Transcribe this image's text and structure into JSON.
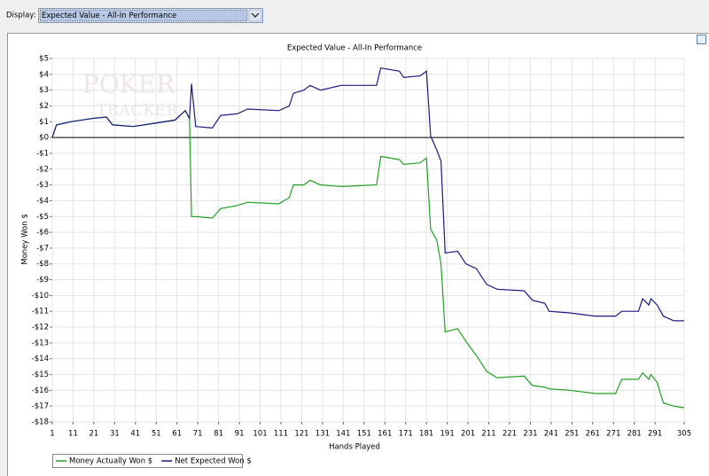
{
  "toolbar": {
    "label": "Display:",
    "selected": "Expected Value - All-In Performance"
  },
  "chart_data": {
    "type": "line",
    "title": "Expected Value - All-In Performance",
    "watermark": [
      "POKER",
      "TRACKER"
    ],
    "x_label": "Hands Played",
    "y_label": "Money Won $",
    "x": [
      1,
      3,
      10,
      20,
      27,
      30,
      40,
      50,
      60,
      65,
      67,
      68,
      70,
      78,
      82,
      90,
      95,
      110,
      115,
      117,
      122,
      125,
      130,
      140,
      157,
      159,
      168,
      170,
      178,
      181,
      183,
      186,
      188,
      190,
      196,
      200,
      205,
      210,
      215,
      228,
      232,
      238,
      240,
      250,
      262,
      272,
      275,
      283,
      285,
      288,
      289,
      292,
      295,
      300,
      305
    ],
    "series": [
      {
        "name": "Money Actually Won $",
        "color": "#22a022",
        "values": [
          0,
          0.8,
          1.0,
          1.2,
          1.3,
          0.8,
          0.7,
          0.9,
          1.1,
          1.7,
          1.2,
          -5.0,
          -5.0,
          -5.1,
          -4.5,
          -4.3,
          -4.1,
          -4.2,
          -3.8,
          -3.0,
          -3.0,
          -2.7,
          -3.0,
          -3.1,
          -3.0,
          -1.2,
          -1.4,
          -1.7,
          -1.6,
          -1.3,
          -5.8,
          -6.5,
          -8.0,
          -12.3,
          -12.1,
          -12.9,
          -13.8,
          -14.8,
          -15.2,
          -15.1,
          -15.7,
          -15.8,
          -15.9,
          -16.0,
          -16.2,
          -16.2,
          -15.3,
          -15.3,
          -14.9,
          -15.3,
          -15.0,
          -15.5,
          -16.8,
          -17.0,
          -17.1
        ]
      },
      {
        "name": "Net Expected Won $",
        "color": "#1a1a80",
        "values": [
          0,
          0.8,
          1.0,
          1.2,
          1.3,
          0.8,
          0.7,
          0.9,
          1.1,
          1.7,
          1.2,
          3.4,
          0.7,
          0.6,
          1.4,
          1.5,
          1.8,
          1.7,
          2.0,
          2.8,
          3.0,
          3.3,
          3.0,
          3.3,
          3.3,
          4.4,
          4.2,
          3.8,
          3.9,
          4.2,
          0.1,
          -0.8,
          -1.5,
          -7.3,
          -7.2,
          -8.0,
          -8.3,
          -9.3,
          -9.6,
          -9.7,
          -10.3,
          -10.5,
          -11.0,
          -11.1,
          -11.3,
          -11.3,
          -11.0,
          -11.0,
          -10.2,
          -10.6,
          -10.2,
          -10.6,
          -11.3,
          -11.6,
          -11.6
        ]
      }
    ],
    "xlim": [
      1,
      305
    ],
    "ylim": [
      -18,
      5
    ],
    "xticks": [
      1,
      11,
      21,
      31,
      41,
      51,
      61,
      71,
      81,
      91,
      101,
      111,
      121,
      131,
      141,
      151,
      161,
      171,
      181,
      191,
      201,
      211,
      221,
      231,
      241,
      251,
      261,
      271,
      281,
      291,
      305
    ],
    "yticks": [
      {
        "value": 5,
        "label": "$5"
      },
      {
        "value": 4,
        "label": "$4"
      },
      {
        "value": 3,
        "label": "$3"
      },
      {
        "value": 2,
        "label": "$2"
      },
      {
        "value": 1,
        "label": "$1"
      },
      {
        "value": 0,
        "label": "$0"
      },
      {
        "value": -1,
        "label": "-$1"
      },
      {
        "value": -2,
        "label": "-$2"
      },
      {
        "value": -3,
        "label": "-$3"
      },
      {
        "value": -4,
        "label": "-$4"
      },
      {
        "value": -5,
        "label": "-$5"
      },
      {
        "value": -6,
        "label": "-$6"
      },
      {
        "value": -7,
        "label": "-$7"
      },
      {
        "value": -8,
        "label": "-$8"
      },
      {
        "value": -9,
        "label": "-$9"
      },
      {
        "value": -10,
        "label": "-$10"
      },
      {
        "value": -11,
        "label": "-$11"
      },
      {
        "value": -12,
        "label": "-$12"
      },
      {
        "value": -13,
        "label": "-$13"
      },
      {
        "value": -14,
        "label": "-$14"
      },
      {
        "value": -15,
        "label": "-$15"
      },
      {
        "value": -16,
        "label": "-$16"
      },
      {
        "value": -17,
        "label": "-$17"
      },
      {
        "value": -18,
        "label": "-$18"
      }
    ],
    "grid": true,
    "legend": "bottom-left"
  }
}
